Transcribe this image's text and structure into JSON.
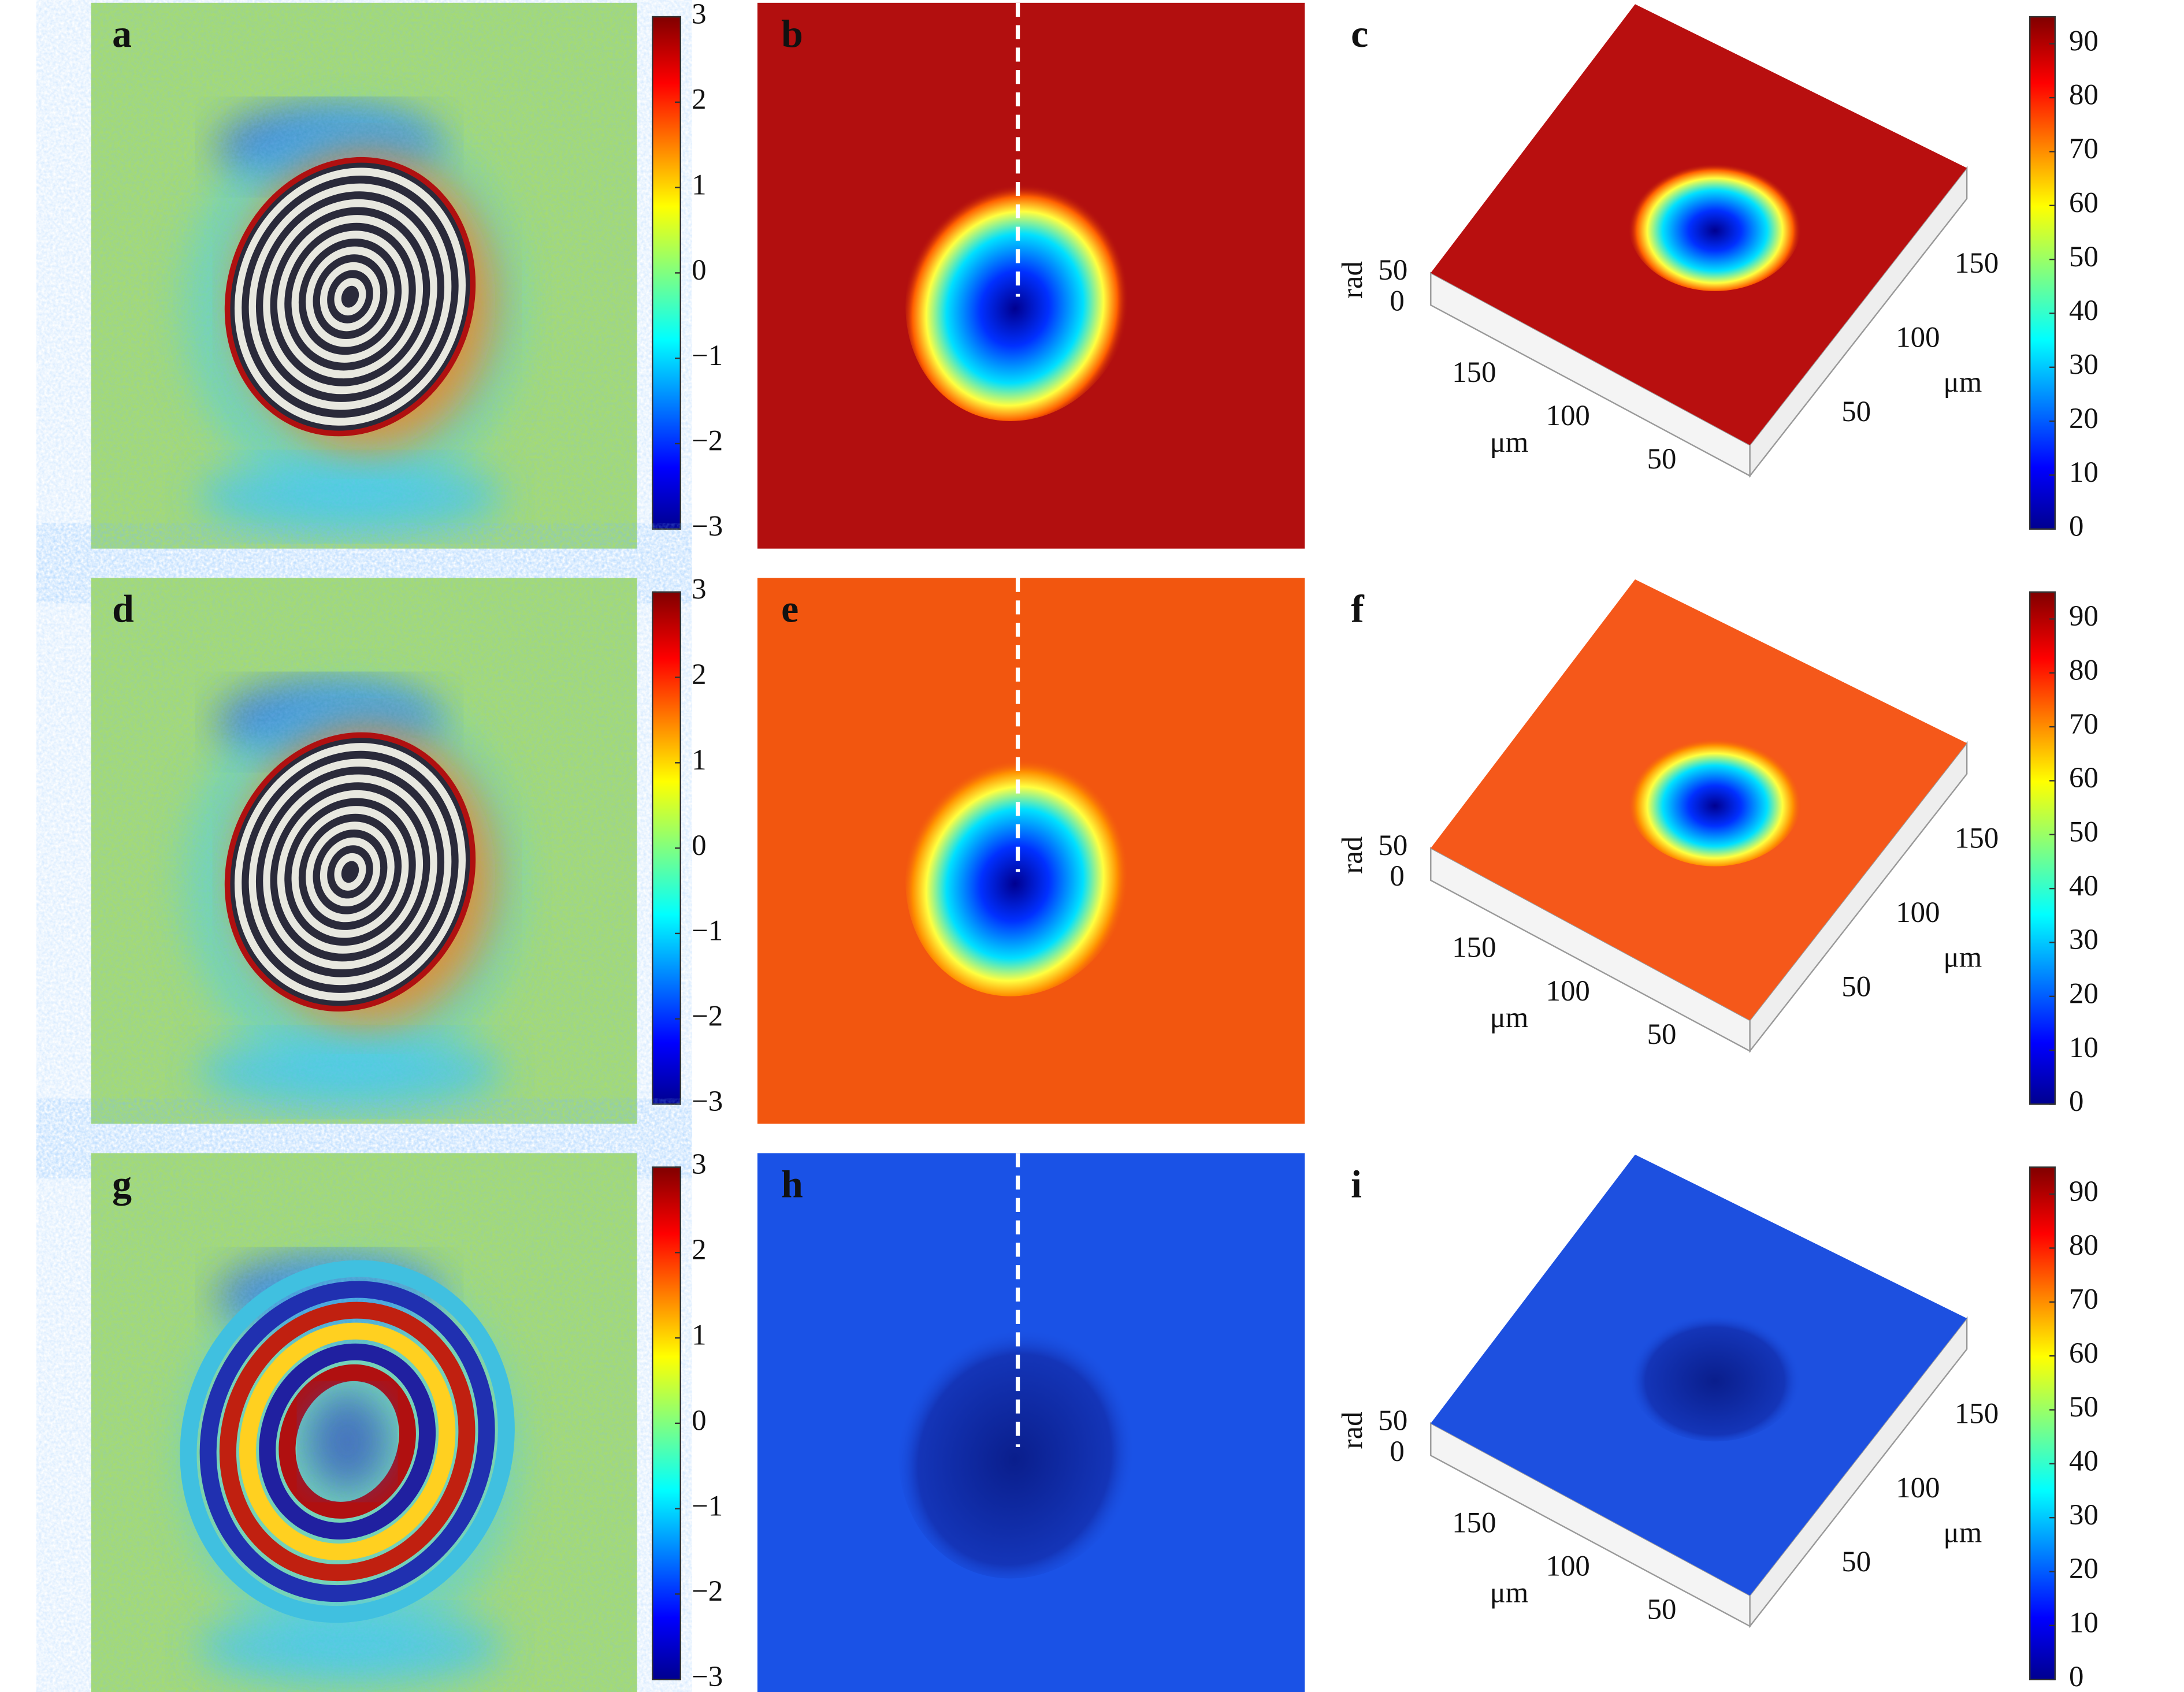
{
  "panels": [
    {
      "label": "a"
    },
    {
      "label": "b"
    },
    {
      "label": "c"
    },
    {
      "label": "d"
    },
    {
      "label": "e"
    },
    {
      "label": "f"
    },
    {
      "label": "g"
    },
    {
      "label": "h"
    },
    {
      "label": "i"
    }
  ],
  "phase_colorbar": {
    "lim": [
      -3,
      3
    ],
    "ticks": [
      3,
      2,
      1,
      0,
      {
        "value": -1,
        "label": "−1"
      },
      {
        "value": -2,
        "label": "−2"
      },
      {
        "value": -3,
        "label": "−3"
      }
    ]
  },
  "height_colorbar": {
    "lim": [
      0,
      95
    ],
    "ticks": [
      90,
      80,
      70,
      60,
      50,
      40,
      30,
      20,
      10,
      0
    ]
  },
  "surface_axes": {
    "z_label": "rad",
    "z_ticks": [
      50,
      0
    ],
    "x_label": "μm",
    "x_ticks": [
      150,
      100,
      50
    ],
    "y_label": "μm",
    "y_ticks": [
      150,
      100,
      50
    ]
  }
}
